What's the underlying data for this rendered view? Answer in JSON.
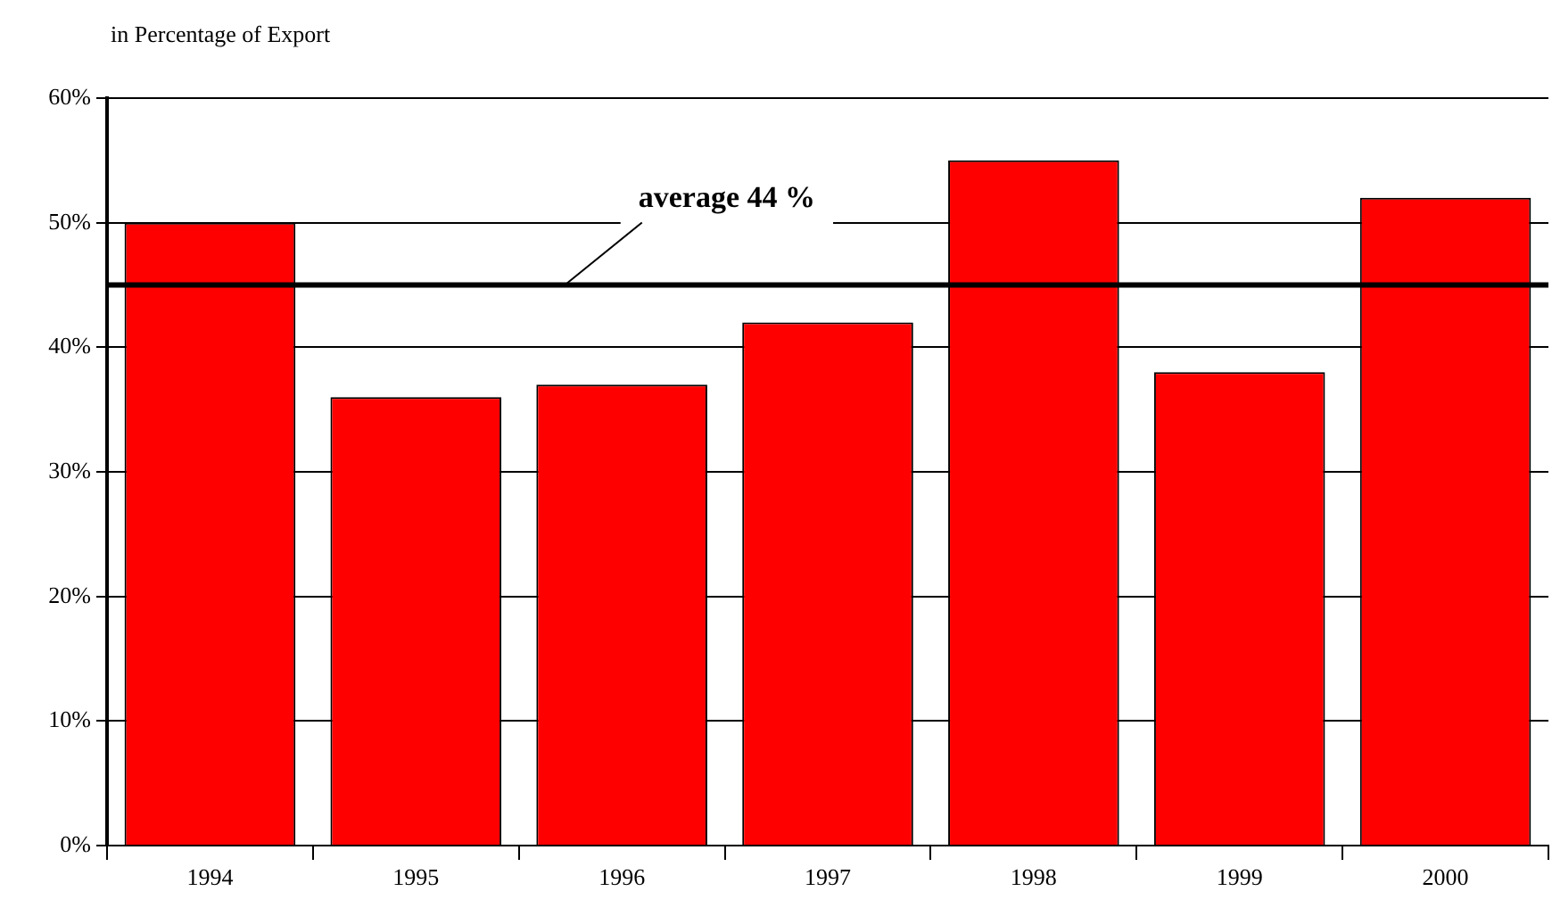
{
  "chart_data": {
    "type": "bar",
    "ylabel": "in Percentage of Export",
    "categories": [
      "1994",
      "1995",
      "1996",
      "1997",
      "1998",
      "1999",
      "2000"
    ],
    "values": [
      50,
      36,
      37,
      42,
      55,
      38,
      52
    ],
    "color": "#ff0000",
    "ylim": [
      0,
      60
    ],
    "yticks": [
      {
        "value": 0,
        "label": "0%"
      },
      {
        "value": 10,
        "label": "10%"
      },
      {
        "value": 20,
        "label": "20%"
      },
      {
        "value": 30,
        "label": "30%"
      },
      {
        "value": 40,
        "label": "40%"
      },
      {
        "value": 50,
        "label": "50%"
      },
      {
        "value": 60,
        "label": "60%"
      }
    ],
    "grid": "y",
    "legend": false,
    "ref_lines": [
      {
        "axis": "y",
        "value": 45,
        "label": "average 44 %",
        "color": "#000000"
      }
    ]
  }
}
